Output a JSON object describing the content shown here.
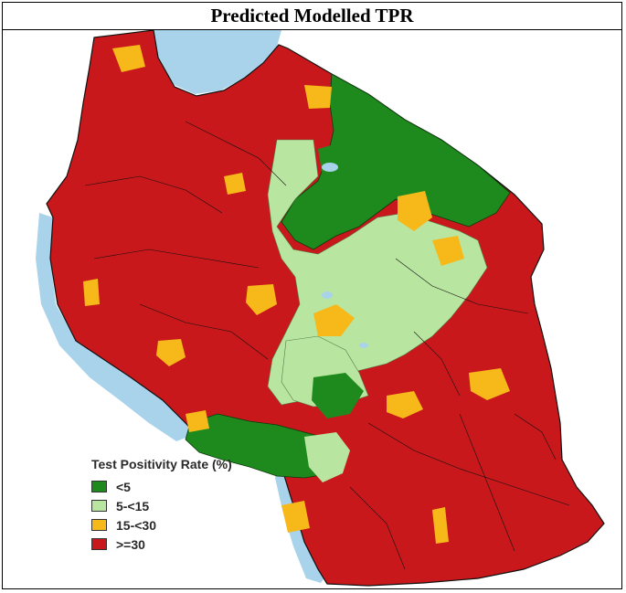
{
  "title": "Predicted Modelled TPR",
  "colors": {
    "water": "#a9d3ea",
    "lt5": "#1e8a1e",
    "r5_15": "#b8e6a0",
    "r15_30": "#f7b81a",
    "ge30": "#c8181b",
    "border": "#111111"
  },
  "legend": {
    "title": "Test Positivity Rate (%)",
    "items": [
      {
        "label": "<5",
        "color": "#1e8a1e"
      },
      {
        "label": "5-<15",
        "color": "#b8e6a0"
      },
      {
        "label": "15-<30",
        "color": "#f7b81a"
      },
      {
        "label": ">=30",
        "color": "#c8181b"
      }
    ]
  }
}
